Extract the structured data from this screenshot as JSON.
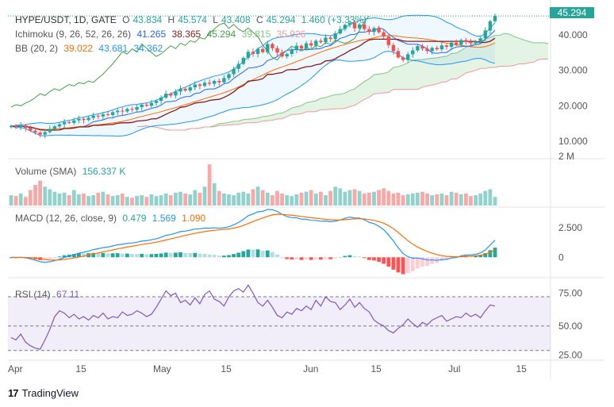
{
  "header": {
    "symbol": "HYPE/USDT, 1D, GATE",
    "o_label": "O",
    "o_value": "43.834",
    "h_label": "H",
    "h_value": "45.574",
    "l_label": "L",
    "l_value": "43.408",
    "c_label": "C",
    "c_value": "45.294",
    "change": "1.460 (+3.33%)"
  },
  "indicators": {
    "ichimoku": {
      "label": "Ichimoku (9, 26, 52, 26, 26)",
      "v1": "41.265",
      "v2": "38.365",
      "v3": "45.294",
      "v4": "39.815",
      "v5": "35.926"
    },
    "bb": {
      "label": "BB (20, 2)",
      "v1": "39.022",
      "v2": "43.681",
      "v3": "34.362"
    },
    "volume": {
      "label": "Volume (SMA)",
      "v1": "156.337 K"
    },
    "macd": {
      "label": "MACD (12, 26, close, 9)",
      "v1": "0.479",
      "v2": "1.569",
      "v3": "1.090"
    },
    "rsi": {
      "label": "RSI (14)",
      "v1": "67.11"
    }
  },
  "price_tag": "45.294",
  "footer": {
    "logo": "17",
    "brand": "TradingView"
  },
  "colors": {
    "up": "#26a69a",
    "down": "#ef5350",
    "ichi_conv": "#2962ff",
    "ichi_base": "#8b1a1a",
    "ichi_lag": "#43a047",
    "ichi_a": "#81c784",
    "ichi_b": "#ef9a9a",
    "bb_basis": "#ff6d00",
    "bb_band": "#2196f3",
    "macd": "#2196f3",
    "signal": "#ff6d00",
    "rsi": "#7e57c2"
  },
  "chart_data": {
    "type": "candlestick",
    "dates_start": "2025-04-01",
    "x_labels": [
      "Apr",
      "15",
      "May",
      "15",
      "Jun",
      "15",
      "Jul",
      "15"
    ],
    "x_label_days": [
      0,
      14,
      30,
      44,
      61,
      75,
      91,
      105
    ],
    "price_axis": {
      "ticks": [
        "10.000",
        "20.000",
        "30.000",
        "40.000"
      ],
      "tick_values": [
        10,
        20,
        30,
        40
      ],
      "ylim": [
        6,
        48
      ]
    },
    "volume_axis": {
      "label": "2 M"
    },
    "macd_axis": {
      "ticks": [
        "0",
        "2.500"
      ],
      "tick_values": [
        0,
        2.5
      ],
      "ylim": [
        -1.6,
        4.2
      ]
    },
    "rsi_axis": {
      "ticks": [
        "25.00",
        "50.00",
        "75.00"
      ],
      "tick_values": [
        25,
        50,
        75
      ],
      "ylim": [
        22,
        90
      ],
      "bands": [
        30,
        50,
        70
      ]
    },
    "close": [
      14.3,
      14.0,
      14.5,
      13.8,
      13.0,
      12.5,
      11.9,
      12.6,
      13.5,
      14.2,
      14.8,
      15.4,
      15.2,
      15.9,
      16.3,
      16.0,
      16.6,
      17.2,
      17.0,
      17.6,
      17.4,
      18.2,
      18.6,
      18.4,
      19.1,
      18.9,
      19.6,
      20.3,
      20.0,
      20.8,
      21.4,
      22.3,
      23.4,
      22.9,
      24.0,
      24.8,
      24.3,
      25.2,
      26.0,
      25.6,
      26.5,
      26.2,
      27.0,
      26.6,
      27.8,
      28.9,
      30.4,
      31.8,
      33.5,
      35.2,
      34.6,
      36.0,
      35.1,
      37.4,
      36.2,
      35.0,
      33.9,
      34.6,
      35.8,
      36.9,
      36.1,
      37.6,
      37.0,
      38.3,
      37.9,
      39.2,
      38.8,
      40.4,
      41.6,
      42.8,
      43.3,
      41.8,
      42.9,
      41.6,
      40.8,
      41.9,
      40.7,
      39.5,
      37.1,
      35.4,
      33.6,
      32.9,
      34.5,
      35.6,
      36.8,
      36.1,
      35.4,
      36.3,
      35.9,
      37.0,
      36.6,
      37.8,
      37.2,
      38.5,
      38.0,
      37.6,
      38.1,
      39.0,
      41.2,
      43.8,
      45.294
    ],
    "volume": [
      0.6,
      0.55,
      0.7,
      0.5,
      0.9,
      1.2,
      1.45,
      1.1,
      0.95,
      0.8,
      0.7,
      0.75,
      0.6,
      0.9,
      0.65,
      0.7,
      0.55,
      0.6,
      0.75,
      0.8,
      0.65,
      0.55,
      0.6,
      0.7,
      0.5,
      0.45,
      0.55,
      0.6,
      0.5,
      0.65,
      0.55,
      0.6,
      0.7,
      0.6,
      0.75,
      0.8,
      0.7,
      0.65,
      0.9,
      0.75,
      1.1,
      2.4,
      1.3,
      0.85,
      0.7,
      0.65,
      0.6,
      0.75,
      0.8,
      0.7,
      0.95,
      1.1,
      0.9,
      0.75,
      0.6,
      0.85,
      0.7,
      0.6,
      0.55,
      0.65,
      0.75,
      0.8,
      0.9,
      0.7,
      0.8,
      0.6,
      0.85,
      1.1,
      1.0,
      0.8,
      0.9,
      0.95,
      0.85,
      0.7,
      0.75,
      0.8,
      0.9,
      1.0,
      0.85,
      0.7,
      0.75,
      0.6,
      0.65,
      0.7,
      0.75,
      0.8,
      0.7,
      0.6,
      0.65,
      0.7,
      0.6,
      0.8,
      0.75,
      0.65,
      0.7,
      0.55,
      0.6,
      0.7,
      0.85,
      0.95,
      0.5
    ],
    "rsi": [
      40,
      38,
      43,
      36,
      33,
      31,
      30,
      38,
      47,
      58,
      63,
      61,
      57,
      60,
      56,
      58,
      55,
      59,
      57,
      61,
      56,
      58,
      57,
      62,
      59,
      60,
      63,
      61,
      58,
      60,
      66,
      73,
      80,
      76,
      78,
      70,
      72,
      68,
      74,
      69,
      77,
      80,
      73,
      71,
      67,
      75,
      80,
      82,
      79,
      85,
      78,
      70,
      67,
      72,
      66,
      59,
      57,
      62,
      60,
      65,
      63,
      67,
      64,
      72,
      67,
      75,
      71,
      70,
      64,
      68,
      73,
      66,
      70,
      65,
      62,
      55,
      52,
      50,
      46,
      44,
      48,
      51,
      56,
      52,
      49,
      53,
      51,
      55,
      57,
      59,
      54,
      56,
      58,
      57,
      61,
      58,
      60,
      57,
      63,
      68,
      67.11
    ]
  }
}
